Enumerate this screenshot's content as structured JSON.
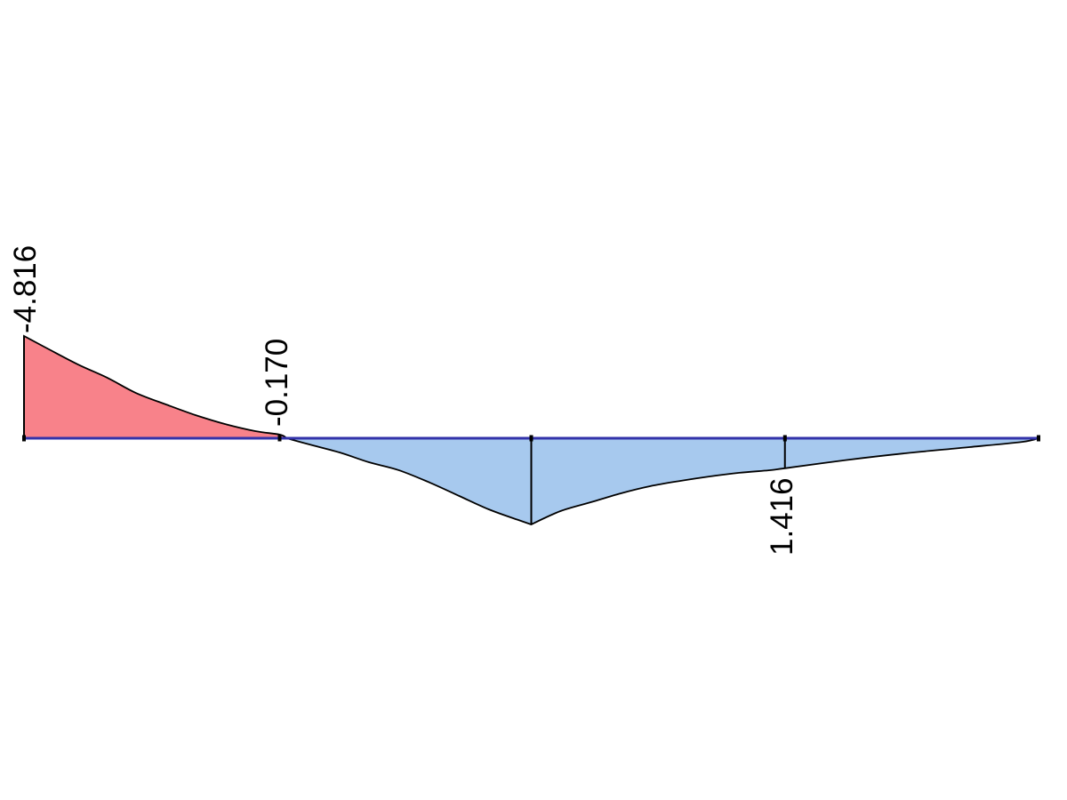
{
  "page": {
    "background": "#ffffff"
  },
  "chart_data": {
    "type": "area",
    "title": "",
    "description": "Beam internal-force result diagram along a horizontal member axis; negative values plotted above the axis (red fill), positive values plotted below the axis (blue fill); a sharp peak cusp at midspan and a labeled ordinate at three-quarter span",
    "axis": {
      "orientation": "horizontal",
      "positive_plotted_down": true,
      "x_range_frac": [
        0,
        1
      ],
      "value_at_left_end": -4.816,
      "value_at_right_end": 0
    },
    "labeled_points": [
      {
        "label": "-4.816",
        "value": -4.816,
        "position_frac": 0.0
      },
      {
        "label": "-0.170",
        "value": -0.17,
        "position_frac": 0.252
      },
      {
        "label": "1.416",
        "value": 1.416,
        "position_frac": 0.75
      }
    ],
    "curve": {
      "negative_segment": [
        [
          0.0,
          -4.816
        ],
        [
          0.023,
          -4.23
        ],
        [
          0.053,
          -3.48
        ],
        [
          0.082,
          -2.85
        ],
        [
          0.11,
          -2.14
        ],
        [
          0.14,
          -1.59
        ],
        [
          0.169,
          -1.09
        ],
        [
          0.198,
          -0.67
        ],
        [
          0.228,
          -0.335
        ],
        [
          0.252,
          -0.17
        ],
        [
          0.259,
          0.0
        ]
      ],
      "positive_left_segment": [
        [
          0.259,
          0.0
        ],
        [
          0.281,
          0.29
        ],
        [
          0.311,
          0.67
        ],
        [
          0.34,
          1.13
        ],
        [
          0.369,
          1.5
        ],
        [
          0.4,
          2.09
        ],
        [
          0.429,
          2.72
        ],
        [
          0.458,
          3.35
        ],
        [
          0.487,
          3.85
        ],
        [
          0.5,
          4.06
        ]
      ],
      "positive_right_segment": [
        [
          0.5,
          4.06
        ],
        [
          0.529,
          3.43
        ],
        [
          0.559,
          3.01
        ],
        [
          0.588,
          2.6
        ],
        [
          0.617,
          2.26
        ],
        [
          0.647,
          2.01
        ],
        [
          0.676,
          1.8
        ],
        [
          0.705,
          1.63
        ],
        [
          0.734,
          1.51
        ],
        [
          0.75,
          1.416
        ],
        [
          0.81,
          1.03
        ],
        [
          0.868,
          0.71
        ],
        [
          0.932,
          0.42
        ],
        [
          0.984,
          0.17
        ],
        [
          1.0,
          0.0
        ]
      ]
    },
    "vertical_markers": [
      {
        "at_frac": 0.0,
        "to_value": -4.816
      },
      {
        "at_frac": 0.5,
        "to_value": 4.06
      },
      {
        "at_frac": 0.75,
        "to_value": 1.416
      }
    ],
    "axis_nodes_frac": [
      0.0,
      0.252,
      0.5,
      0.75,
      1.0
    ],
    "colors": {
      "negative_fill": "#F8828A",
      "positive_fill": "#A7C9EE",
      "axis_line": "#3333AA",
      "outline": "#000000",
      "label_text": "#000000"
    },
    "legend": null,
    "grid": false
  }
}
